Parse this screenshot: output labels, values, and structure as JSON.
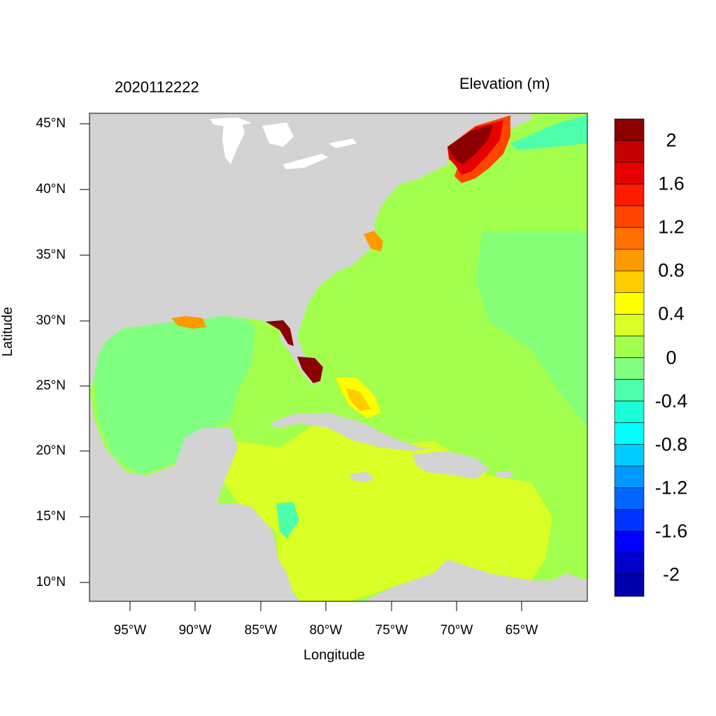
{
  "header": {
    "date": "2020112222",
    "variable": "Elevation (m)"
  },
  "axes": {
    "xlabel": "Longitude",
    "ylabel": "Latitude",
    "x_ticks": [
      "95°W",
      "90°W",
      "85°W",
      "80°W",
      "75°W",
      "70°W",
      "65°W"
    ],
    "y_ticks": [
      "45°N",
      "40°N",
      "35°N",
      "30°N",
      "25°N",
      "20°N",
      "15°N",
      "10°N"
    ],
    "lon_range": [
      -98,
      -60
    ],
    "lat_range": [
      8.5,
      46
    ]
  },
  "colorbar": {
    "labels": [
      "2",
      "1.6",
      "1.2",
      "0.8",
      "0.4",
      "0",
      "-0.4",
      "-0.8",
      "-1.2",
      "-1.6",
      "-2"
    ],
    "colors": [
      "#8b0000",
      "#c40000",
      "#e60000",
      "#ff1a00",
      "#ff4500",
      "#ff7000",
      "#ff9900",
      "#ffcc00",
      "#ffff00",
      "#d9ff26",
      "#a3ff4d",
      "#80ff80",
      "#4dffaa",
      "#1affd9",
      "#00ffff",
      "#00ccff",
      "#0099ff",
      "#0066ff",
      "#0033ff",
      "#0000ff",
      "#0000cc",
      "#0000aa"
    ]
  },
  "colors": {
    "land": "#d3d3d3",
    "gulf": "#80ff80",
    "atlantic": "#a3ff4d",
    "caribbean": "#d9ff26",
    "surge_high": "#8b0000"
  }
}
